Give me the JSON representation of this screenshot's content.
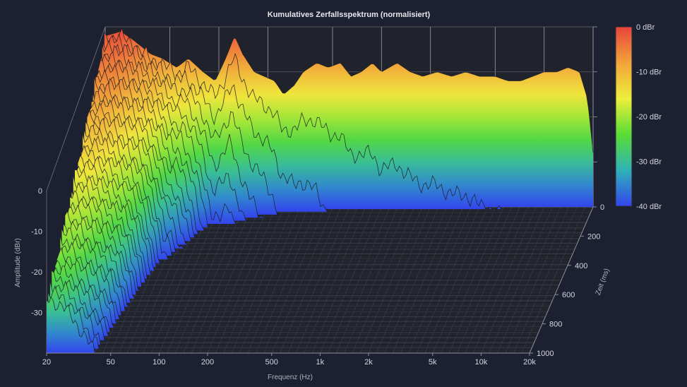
{
  "chart_data": {
    "type": "waterfall-3d",
    "title": "Kumulatives Zerfallsspektrum (normalisiert)",
    "xlabel": "Frequenz (Hz)",
    "ylabel": "Amplitude (dBr)",
    "zlabel": "Zeit (ms)",
    "x_scale": "log",
    "xlim": [
      20,
      20000
    ],
    "x_ticks": [
      {
        "value": 20,
        "label": "20"
      },
      {
        "value": 50,
        "label": "50"
      },
      {
        "value": 100,
        "label": "100"
      },
      {
        "value": 200,
        "label": "200"
      },
      {
        "value": 500,
        "label": "500"
      },
      {
        "value": 1000,
        "label": "1k"
      },
      {
        "value": 2000,
        "label": "2k"
      },
      {
        "value": 5000,
        "label": "5k"
      },
      {
        "value": 10000,
        "label": "10k"
      },
      {
        "value": 20000,
        "label": "20k"
      }
    ],
    "ylim": [
      -40,
      0
    ],
    "y_ticks": [
      {
        "value": 0,
        "label": "0"
      },
      {
        "value": -10,
        "label": "-10"
      },
      {
        "value": -20,
        "label": "-20"
      },
      {
        "value": -30,
        "label": "-30"
      }
    ],
    "zlim": [
      0,
      1000
    ],
    "z_ticks": [
      {
        "value": 0,
        "label": "0"
      },
      {
        "value": 200,
        "label": "200"
      },
      {
        "value": 400,
        "label": "400"
      },
      {
        "value": 600,
        "label": "600"
      },
      {
        "value": 800,
        "label": "800"
      },
      {
        "value": 1000,
        "label": "1000"
      }
    ],
    "colorbar": {
      "range": [
        -40,
        0
      ],
      "ticks": [
        {
          "value": 0,
          "label": "0 dBr"
        },
        {
          "value": -10,
          "label": "-10 dBr"
        },
        {
          "value": -20,
          "label": "-20 dBr"
        },
        {
          "value": -30,
          "label": "-30 dBr"
        },
        {
          "value": -40,
          "label": "-40 dBr"
        }
      ],
      "colors": [
        "#e8443a",
        "#f2a33a",
        "#eeee3c",
        "#58dd34",
        "#2fb2b8",
        "#3344ee"
      ]
    },
    "spectrum_t0": [
      {
        "f": 20,
        "db": -2
      },
      {
        "f": 25,
        "db": -1
      },
      {
        "f": 30,
        "db": -3
      },
      {
        "f": 38,
        "db": -6
      },
      {
        "f": 45,
        "db": -7
      },
      {
        "f": 55,
        "db": -9
      },
      {
        "f": 65,
        "db": -7
      },
      {
        "f": 80,
        "db": -10
      },
      {
        "f": 95,
        "db": -12
      },
      {
        "f": 110,
        "db": -7
      },
      {
        "f": 125,
        "db": -2
      },
      {
        "f": 140,
        "db": -6
      },
      {
        "f": 165,
        "db": -10
      },
      {
        "f": 190,
        "db": -11
      },
      {
        "f": 220,
        "db": -12
      },
      {
        "f": 250,
        "db": -15
      },
      {
        "f": 290,
        "db": -13
      },
      {
        "f": 330,
        "db": -10
      },
      {
        "f": 400,
        "db": -8
      },
      {
        "f": 470,
        "db": -9
      },
      {
        "f": 560,
        "db": -8
      },
      {
        "f": 650,
        "db": -11
      },
      {
        "f": 750,
        "db": -10
      },
      {
        "f": 880,
        "db": -8
      },
      {
        "f": 1000,
        "db": -10
      },
      {
        "f": 1250,
        "db": -8
      },
      {
        "f": 1500,
        "db": -10
      },
      {
        "f": 1800,
        "db": -11
      },
      {
        "f": 2200,
        "db": -10
      },
      {
        "f": 2700,
        "db": -11
      },
      {
        "f": 3300,
        "db": -10
      },
      {
        "f": 4000,
        "db": -11
      },
      {
        "f": 5000,
        "db": -11
      },
      {
        "f": 6000,
        "db": -12
      },
      {
        "f": 7200,
        "db": -12
      },
      {
        "f": 8500,
        "db": -11
      },
      {
        "f": 10000,
        "db": -10
      },
      {
        "f": 12000,
        "db": -10
      },
      {
        "f": 14000,
        "db": -9
      },
      {
        "f": 16500,
        "db": -10
      },
      {
        "f": 18500,
        "db": -16
      },
      {
        "f": 20000,
        "db": -28
      }
    ],
    "decay_ms_per_dB": [
      {
        "f": 20,
        "v": 40
      },
      {
        "f": 40,
        "v": 30
      },
      {
        "f": 60,
        "v": 12
      },
      {
        "f": 80,
        "v": 8
      },
      {
        "f": 100,
        "v": 4
      },
      {
        "f": 150,
        "v": 3
      },
      {
        "f": 200,
        "v": 2.5
      },
      {
        "f": 300,
        "v": 1.5
      },
      {
        "f": 500,
        "v": 1
      },
      {
        "f": 1000,
        "v": 0.7
      },
      {
        "f": 5000,
        "v": 0.5
      },
      {
        "f": 20000,
        "v": 0.4
      }
    ],
    "slice_count": 40
  }
}
